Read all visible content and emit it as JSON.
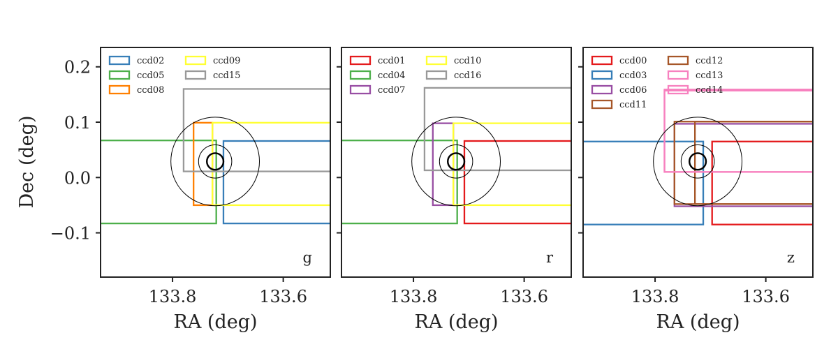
{
  "chart_data": {
    "type": "line",
    "ylabel": "Dec (deg)",
    "xlabel": "RA (deg)",
    "xlim": [
      133.93,
      133.515
    ],
    "ylim": [
      -0.18,
      0.235
    ],
    "x_inverted": true,
    "xticks": [
      133.8,
      133.6
    ],
    "xtick_labels": [
      "133.8",
      "133.6"
    ],
    "yticks": [
      0.2,
      0.1,
      0.0,
      -0.1
    ],
    "ytick_labels": [
      "0.2",
      "0.1",
      "0.0",
      "−0.1"
    ],
    "legend_placement": "top-left",
    "legend_columns": 2,
    "grid": false,
    "circles": {
      "center_ra": 133.723,
      "center_dec": 0.029,
      "radii_deg": [
        0.015,
        0.03,
        0.08
      ]
    },
    "panels": [
      {
        "band": "g",
        "ccds": [
          {
            "name": "ccd02",
            "color": "#377eb8",
            "ra": [
              133.49,
              133.708
            ],
            "dec": [
              -0.083,
              0.066
            ]
          },
          {
            "name": "ccd05",
            "color": "#4daf4a",
            "ra": [
              133.721,
              133.94
            ],
            "dec": [
              -0.083,
              0.067
            ]
          },
          {
            "name": "ccd08",
            "color": "#ff7f00",
            "ra": [
              133.728,
              133.762
            ],
            "dec": [
              -0.05,
              0.099
            ]
          },
          {
            "name": "ccd09",
            "color": "#ffff33",
            "ra": [
              133.51,
              133.728
            ],
            "dec": [
              -0.05,
              0.099
            ]
          },
          {
            "name": "ccd15",
            "color": "#999999",
            "ra": [
              133.51,
              133.78
            ],
            "dec": [
              0.011,
              0.16
            ]
          }
        ]
      },
      {
        "band": "r",
        "ccds": [
          {
            "name": "ccd01",
            "color": "#e41a1c",
            "ra": [
              133.51,
              133.708
            ],
            "dec": [
              -0.083,
              0.066
            ]
          },
          {
            "name": "ccd04",
            "color": "#4daf4a",
            "ra": [
              133.721,
              133.94
            ],
            "dec": [
              -0.083,
              0.067
            ]
          },
          {
            "name": "ccd07",
            "color": "#984ea3",
            "ra": [
              133.728,
              133.765
            ],
            "dec": [
              -0.05,
              0.098
            ]
          },
          {
            "name": "ccd10",
            "color": "#ffff33",
            "ra": [
              133.51,
              133.728
            ],
            "dec": [
              -0.05,
              0.098
            ]
          },
          {
            "name": "ccd16",
            "color": "#999999",
            "ra": [
              133.51,
              133.78
            ],
            "dec": [
              0.013,
              0.162
            ]
          }
        ]
      },
      {
        "band": "z",
        "ccds": [
          {
            "name": "ccd00",
            "color": "#e41a1c",
            "ra": [
              133.51,
              133.697
            ],
            "dec": [
              -0.085,
              0.065
            ]
          },
          {
            "name": "ccd03",
            "color": "#377eb8",
            "ra": [
              133.713,
              133.94
            ],
            "dec": [
              -0.085,
              0.065
            ]
          },
          {
            "name": "ccd06",
            "color": "#984ea3",
            "ra": [
              133.51,
              133.765
            ],
            "dec": [
              -0.052,
              0.097
            ]
          },
          {
            "name": "ccd11",
            "color": "#a65628",
            "ra": [
              133.51,
              133.728
            ],
            "dec": [
              -0.048,
              0.101
            ]
          },
          {
            "name": "ccd12",
            "color": "#a65628",
            "ra": [
              133.51,
              133.765
            ],
            "dec": [
              -0.048,
              0.101
            ]
          },
          {
            "name": "ccd13",
            "color": "#f781bf",
            "ra": [
              133.51,
              133.783
            ],
            "dec": [
              0.01,
              0.159
            ]
          },
          {
            "name": "ccd14",
            "color": "#f781bf",
            "ra": [
              133.51,
              133.783
            ],
            "dec": [
              0.01,
              0.157
            ]
          }
        ]
      }
    ]
  }
}
